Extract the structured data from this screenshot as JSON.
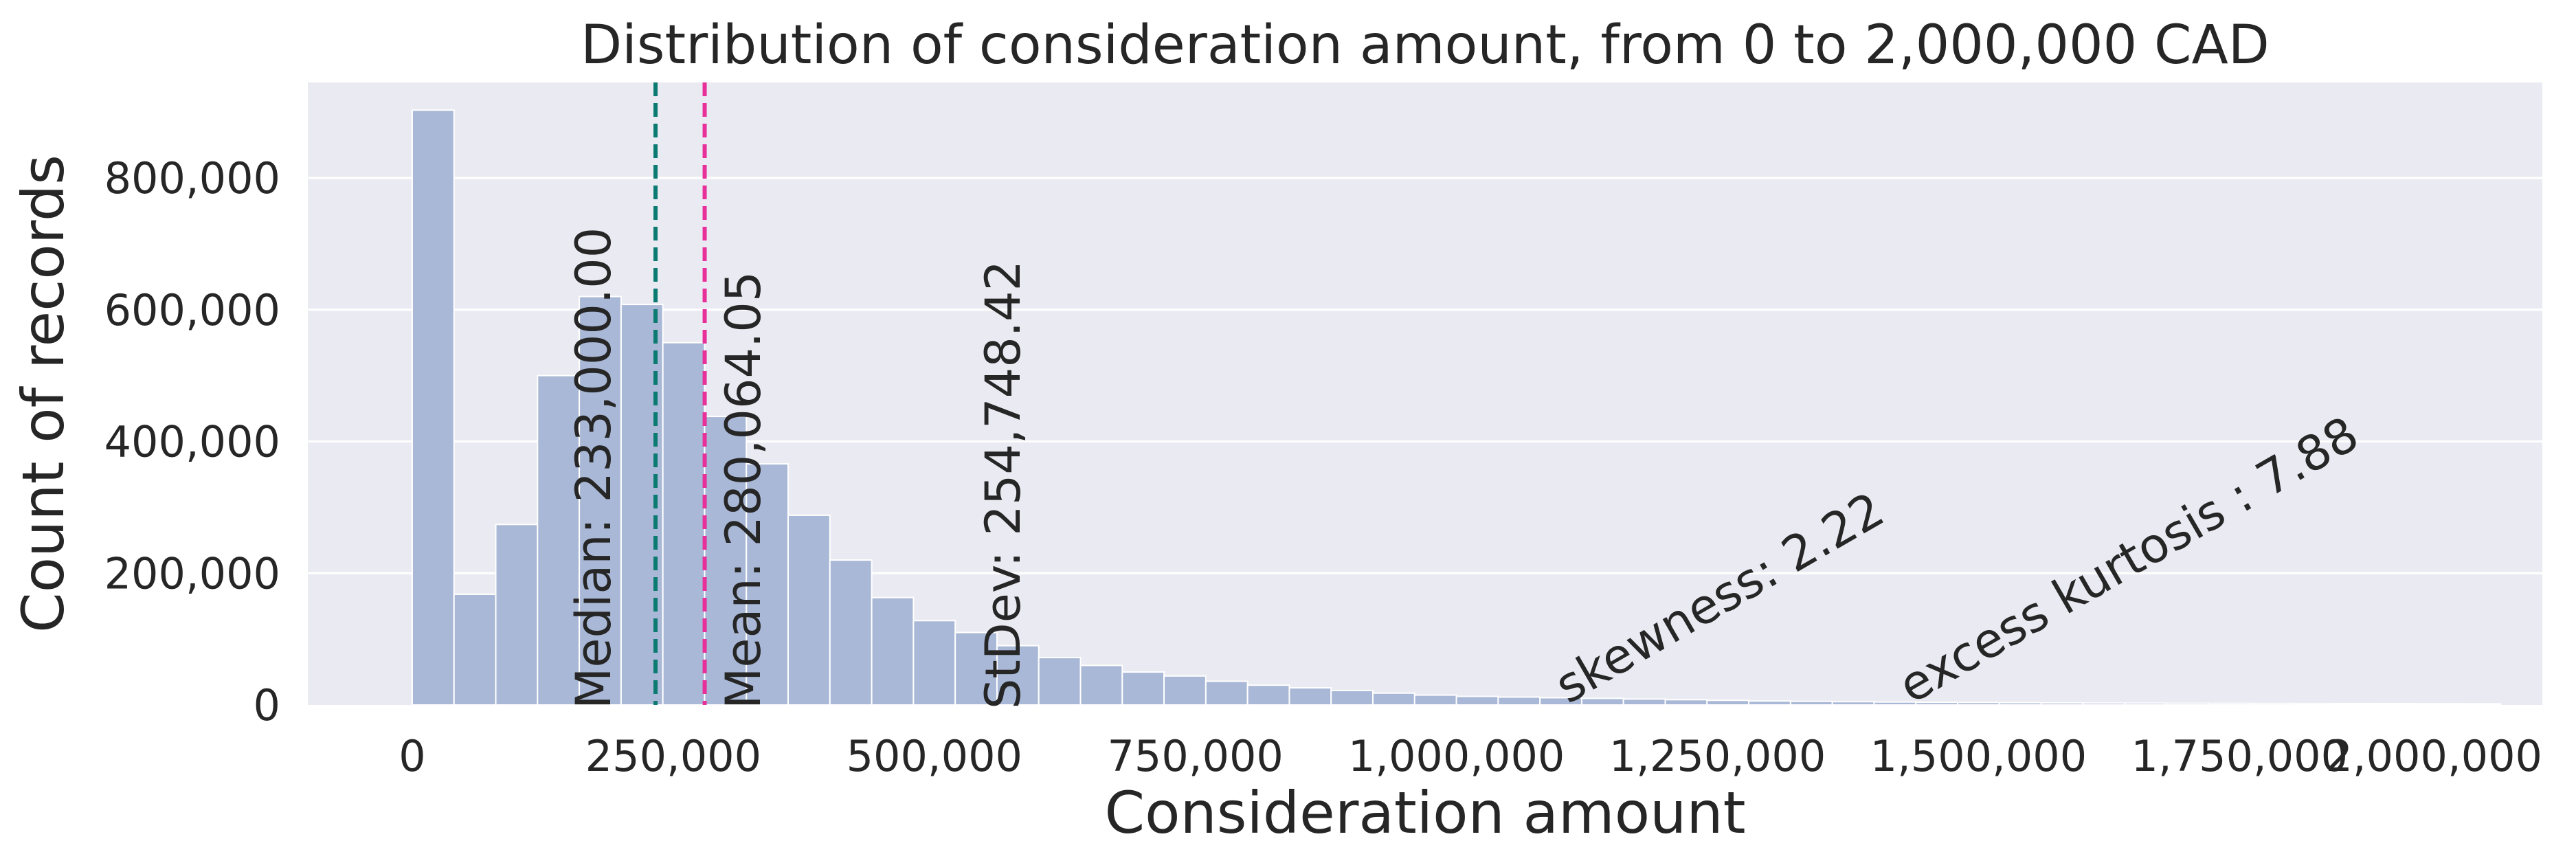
{
  "chart_data": {
    "type": "bar",
    "title": "Distribution of consideration amount, from 0 to 2,000,000 CAD",
    "xlabel": "Consideration amount",
    "ylabel": "Count of records",
    "xlim": [
      -100000,
      2040000
    ],
    "ylim": [
      0,
      945000
    ],
    "grid": true,
    "bin_width": 40000,
    "bin_start": 0,
    "values": [
      903000,
      168000,
      274000,
      500000,
      620000,
      608000,
      550000,
      438000,
      366000,
      288000,
      220000,
      163000,
      128000,
      110000,
      90000,
      72000,
      60000,
      50000,
      44000,
      36000,
      30000,
      26000,
      22000,
      18000,
      15000,
      13000,
      12000,
      11000,
      10000,
      9000,
      8000,
      7000,
      6000,
      5500,
      5000,
      4500,
      4000,
      3800,
      3500,
      3200,
      3000,
      2800,
      2600,
      2400,
      2300,
      2200,
      2100,
      2000,
      1900,
      1800
    ],
    "xticks": [
      {
        "value": 0,
        "label": "0"
      },
      {
        "value": 250000,
        "label": "250,000"
      },
      {
        "value": 500000,
        "label": "500,000"
      },
      {
        "value": 750000,
        "label": "750,000"
      },
      {
        "value": 1000000,
        "label": "1,000,000"
      },
      {
        "value": 1250000,
        "label": "1,250,000"
      },
      {
        "value": 1500000,
        "label": "1,500,000"
      },
      {
        "value": 1750000,
        "label": "1,750,000"
      },
      {
        "value": 2000000,
        "label": "2,000,000"
      }
    ],
    "yticks": [
      {
        "value": 0,
        "label": "0"
      },
      {
        "value": 200000,
        "label": "200,000"
      },
      {
        "value": 400000,
        "label": "400,000"
      },
      {
        "value": 600000,
        "label": "600,000"
      },
      {
        "value": 800000,
        "label": "800,000"
      }
    ],
    "median": {
      "value": 233000,
      "label": "Median: 233,000.00",
      "color": "#0b7b72"
    },
    "mean": {
      "value": 280064.05,
      "label": "Mean: 280,064.05",
      "color": "#e8309a"
    },
    "stdev": {
      "value": 254748.42,
      "label": "StDev: 254,748.42"
    },
    "skewness": {
      "label": "skewness: 2.22"
    },
    "kurtosis": {
      "label": "excess kurtosis : 7.88"
    },
    "colors": {
      "bar": "#a9b8d6",
      "background": "#eaeaf2",
      "grid": "#ffffff",
      "text": "#262626"
    }
  }
}
